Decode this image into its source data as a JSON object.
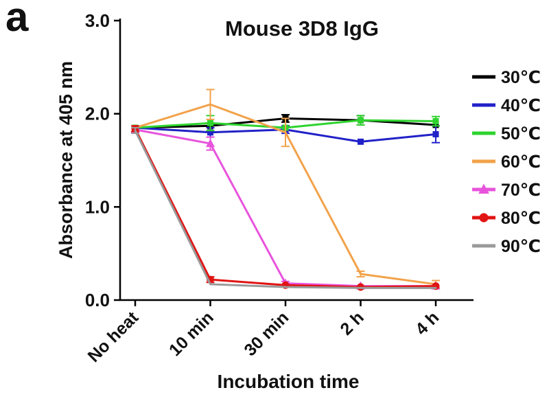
{
  "figure": {
    "panel_label": "a"
  },
  "chart_data": {
    "type": "line",
    "title": "Mouse 3D8 IgG",
    "xlabel": "Incubation time",
    "ylabel": "Absorbance at 405 nm",
    "categories": [
      "No heat",
      "10 min",
      "30 min",
      "2 h",
      "4 h"
    ],
    "ylim": [
      0,
      3.0
    ],
    "yticks": [
      0.0,
      1.0,
      2.0,
      3.0
    ],
    "ytick_labels": [
      "0.0",
      "1.0",
      "2.0",
      "3.0"
    ],
    "grid": false,
    "legend_position": "right",
    "series": [
      {
        "name": "30℃",
        "color": "#000000",
        "marker": "square",
        "values": [
          1.85,
          1.87,
          1.95,
          1.93,
          1.88
        ],
        "errors": [
          0,
          0,
          0.04,
          0.05,
          0
        ]
      },
      {
        "name": "40℃",
        "color": "#2121c8",
        "marker": "square",
        "values": [
          1.85,
          1.8,
          1.83,
          1.7,
          1.78
        ],
        "errors": [
          0,
          0.05,
          0.04,
          0,
          0.09
        ]
      },
      {
        "name": "50℃",
        "color": "#2ed32e",
        "marker": "square",
        "values": [
          1.85,
          1.9,
          1.85,
          1.93,
          1.92
        ],
        "errors": [
          0,
          0.08,
          0,
          0.05,
          0.05
        ]
      },
      {
        "name": "60℃",
        "color": "#f2a24a",
        "marker": "none",
        "values": [
          1.85,
          2.1,
          1.8,
          0.28,
          0.17
        ],
        "errors": [
          0,
          0.16,
          0.15,
          0.03,
          0.04
        ]
      },
      {
        "name": "70℃",
        "color": "#e853dc",
        "marker": "triangle",
        "values": [
          1.83,
          1.68,
          0.18,
          0.15,
          0.15
        ],
        "errors": [
          0,
          0.07,
          0.02,
          0,
          0
        ]
      },
      {
        "name": "80℃",
        "color": "#e11414",
        "marker": "circle",
        "values": [
          1.84,
          0.22,
          0.16,
          0.14,
          0.15
        ],
        "errors": [
          0.03,
          0.03,
          0,
          0,
          0
        ]
      },
      {
        "name": "90℃",
        "color": "#9a9a9a",
        "marker": "none",
        "values": [
          1.82,
          0.17,
          0.14,
          0.13,
          0.13
        ],
        "errors": [
          0.03,
          0,
          0,
          0,
          0
        ]
      }
    ]
  }
}
